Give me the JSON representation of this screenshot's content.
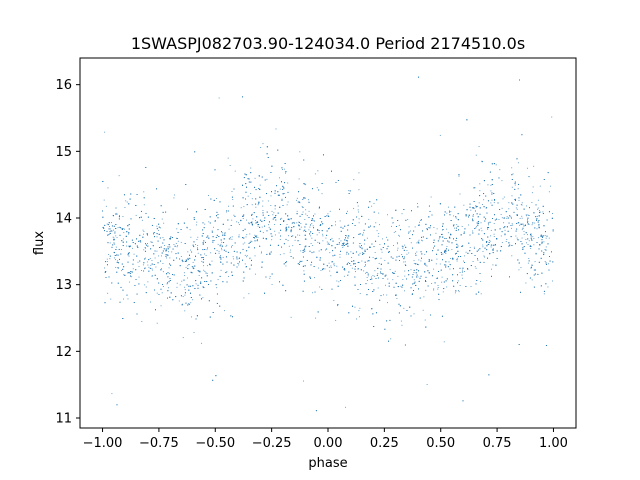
{
  "chart_data": {
    "type": "scatter",
    "title": "1SWASPJ082703.90-124034.0 Period 2174510.0s",
    "xlabel": "phase",
    "ylabel": "flux",
    "xlim": [
      -1.1,
      1.1
    ],
    "ylim": [
      10.85,
      16.4
    ],
    "xticks": [
      -1.0,
      -0.75,
      -0.5,
      -0.25,
      0.0,
      0.25,
      0.5,
      0.75,
      1.0
    ],
    "xtick_labels": [
      "−1.00",
      "−0.75",
      "−0.50",
      "−0.25",
      "0.00",
      "0.25",
      "0.50",
      "0.75",
      "1.00"
    ],
    "yticks": [
      11,
      12,
      13,
      14,
      15,
      16
    ],
    "ytick_labels": [
      "11",
      "12",
      "13",
      "14",
      "15",
      "16"
    ],
    "grid": false,
    "legend": "none",
    "point_color": "#1f77b4",
    "series": [
      {
        "phase_range": [
          -1.0,
          1.0
        ],
        "mean_flux_profile": {
          "phase": [
            -1.0,
            -0.9,
            -0.8,
            -0.7,
            -0.6,
            -0.5,
            -0.4,
            -0.3,
            -0.2,
            -0.1,
            0.0,
            0.1,
            0.2,
            0.3,
            0.4,
            0.5,
            0.6,
            0.7,
            0.8,
            0.9,
            1.0
          ],
          "flux": [
            13.75,
            13.6,
            13.45,
            13.35,
            13.35,
            13.5,
            13.7,
            13.95,
            14.0,
            13.8,
            13.6,
            13.55,
            13.4,
            13.35,
            13.35,
            13.5,
            13.7,
            13.95,
            14.0,
            13.8,
            13.75
          ]
        },
        "typical_spread": 0.45,
        "extreme_flux_range": [
          11.05,
          16.15
        ]
      }
    ]
  }
}
